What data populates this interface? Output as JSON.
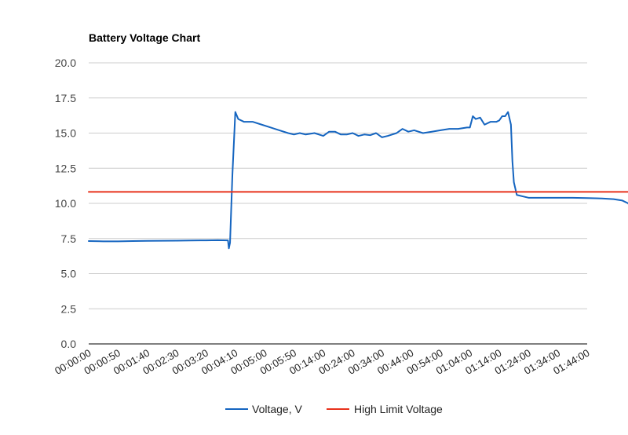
{
  "chart_data": {
    "type": "line",
    "title": "Battery Voltage Chart",
    "xlabel": "",
    "ylabel": "",
    "ylim": [
      0,
      20
    ],
    "y_ticks": [
      "0.0",
      "2.5",
      "5.0",
      "7.5",
      "10.0",
      "12.5",
      "15.0",
      "17.5",
      "20.0"
    ],
    "x_tick_labels": [
      "00:00:00",
      "00:00:50",
      "00:01:40",
      "00:02:30",
      "00:03:20",
      "00:04:10",
      "00:05:00",
      "00:05:50",
      "00:14:00",
      "00:24:00",
      "00:34:00",
      "00:44:00",
      "00:54:00",
      "01:04:00",
      "01:14:00",
      "01:24:00",
      "01:34:00",
      "01:44:00"
    ],
    "grid": true,
    "legend_position": "bottom",
    "series": [
      {
        "name": "Voltage, V",
        "color": "#1565c0",
        "points": [
          [
            0,
            7.32
          ],
          [
            0.5,
            7.3
          ],
          [
            1,
            7.3
          ],
          [
            1.5,
            7.32
          ],
          [
            2,
            7.33
          ],
          [
            2.5,
            7.34
          ],
          [
            3,
            7.35
          ],
          [
            3.5,
            7.36
          ],
          [
            4,
            7.37
          ],
          [
            4.4,
            7.38
          ],
          [
            4.75,
            7.37
          ],
          [
            4.78,
            6.8
          ],
          [
            4.82,
            7.2
          ],
          [
            4.9,
            12.0
          ],
          [
            5.0,
            16.5
          ],
          [
            5.1,
            16.0
          ],
          [
            5.3,
            15.8
          ],
          [
            5.6,
            15.8
          ],
          [
            5.9,
            15.6
          ],
          [
            6.2,
            15.4
          ],
          [
            6.5,
            15.2
          ],
          [
            6.8,
            15.0
          ],
          [
            7.0,
            14.9
          ],
          [
            7.2,
            15.0
          ],
          [
            7.4,
            14.9
          ],
          [
            7.7,
            15.0
          ],
          [
            8.0,
            14.8
          ],
          [
            8.2,
            15.1
          ],
          [
            8.4,
            15.1
          ],
          [
            8.6,
            14.9
          ],
          [
            8.8,
            14.9
          ],
          [
            9.0,
            15.0
          ],
          [
            9.2,
            14.8
          ],
          [
            9.4,
            14.9
          ],
          [
            9.6,
            14.85
          ],
          [
            9.8,
            15.0
          ],
          [
            10.0,
            14.7
          ],
          [
            10.2,
            14.8
          ],
          [
            10.5,
            15.0
          ],
          [
            10.7,
            15.3
          ],
          [
            10.9,
            15.1
          ],
          [
            11.1,
            15.2
          ],
          [
            11.4,
            15.0
          ],
          [
            11.7,
            15.1
          ],
          [
            12.0,
            15.2
          ],
          [
            12.3,
            15.3
          ],
          [
            12.6,
            15.3
          ],
          [
            12.9,
            15.4
          ],
          [
            13.0,
            15.4
          ],
          [
            13.1,
            16.2
          ],
          [
            13.2,
            16.0
          ],
          [
            13.35,
            16.1
          ],
          [
            13.5,
            15.6
          ],
          [
            13.7,
            15.8
          ],
          [
            13.9,
            15.8
          ],
          [
            14.0,
            15.9
          ],
          [
            14.1,
            16.2
          ],
          [
            14.2,
            16.2
          ],
          [
            14.3,
            16.5
          ],
          [
            14.4,
            15.6
          ],
          [
            14.45,
            13.0
          ],
          [
            14.5,
            11.5
          ],
          [
            14.6,
            10.6
          ],
          [
            14.8,
            10.5
          ],
          [
            15.0,
            10.4
          ],
          [
            15.5,
            10.4
          ],
          [
            16.0,
            10.4
          ],
          [
            16.5,
            10.4
          ],
          [
            17.0,
            10.38
          ],
          [
            17.5,
            10.35
          ],
          [
            17.9,
            10.3
          ],
          [
            18.2,
            10.2
          ],
          [
            18.4,
            10.0
          ],
          [
            18.5,
            9.6
          ],
          [
            18.65,
            8.8
          ],
          [
            18.75,
            8.3
          ],
          [
            18.85,
            8.1
          ]
        ]
      },
      {
        "name": "High Limit Voltage",
        "color": "#e8321c",
        "points": [
          [
            0,
            10.82
          ],
          [
            18.85,
            10.82
          ]
        ]
      }
    ]
  }
}
